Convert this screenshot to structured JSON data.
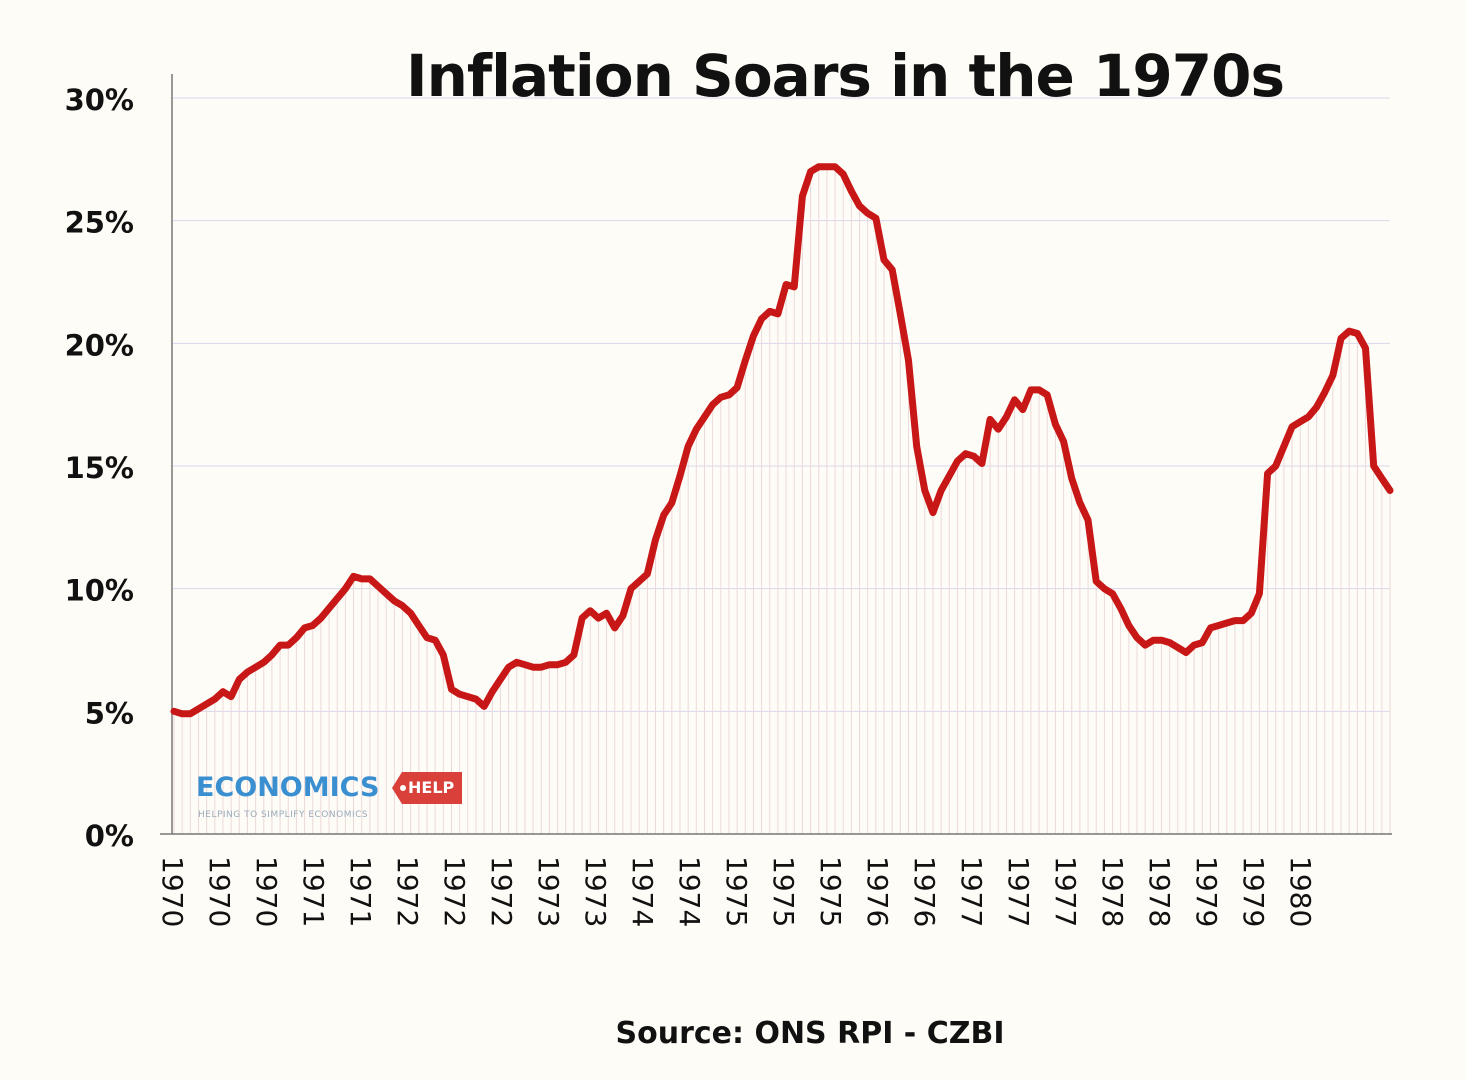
{
  "chart_data": {
    "type": "line",
    "title": "Inflation Soars in the 1970s",
    "source": "Source: ONS RPI - CZBI",
    "ylim": [
      0,
      30
    ],
    "y_ticks": [
      "0%",
      "5%",
      "10%",
      "15%",
      "20%",
      "25%",
      "30%"
    ],
    "y_tick_values": [
      0,
      5,
      10,
      15,
      20,
      25,
      30
    ],
    "x_tick_labels": [
      "1970",
      "1970",
      "1970",
      "1971",
      "1971",
      "1972",
      "1972",
      "1972",
      "1973",
      "1973",
      "1974",
      "1974",
      "1975",
      "1975",
      "1975",
      "1976",
      "1976",
      "1977",
      "1977",
      "1977",
      "1978",
      "1978",
      "1979",
      "1979",
      "1980"
    ],
    "grid": "horizontal",
    "legend": "none",
    "line_color": "#c81717",
    "series": [
      {
        "values": [
          5.0,
          4.9,
          4.9,
          5.1,
          5.3,
          5.5,
          5.8,
          5.6,
          6.3,
          6.6,
          6.8,
          7.0,
          7.3,
          7.7,
          7.7,
          8.0,
          8.4,
          8.5,
          8.8,
          9.2,
          9.6,
          10.0,
          10.5,
          10.4,
          10.4,
          10.1,
          9.8,
          9.5,
          9.3,
          9.0,
          8.5,
          8.0,
          7.9,
          7.3,
          5.9,
          5.7,
          5.6,
          5.5,
          5.2,
          5.8,
          6.3,
          6.8,
          7.0,
          6.9,
          6.8,
          6.8,
          6.9,
          6.9,
          7.0,
          7.3,
          8.8,
          9.1,
          8.8,
          9.0,
          8.4,
          8.9,
          10.0,
          10.3,
          10.6,
          12.0,
          13.0,
          13.5,
          14.6,
          15.8,
          16.5,
          17.0,
          17.5,
          17.8,
          17.9,
          18.2,
          19.3,
          20.3,
          21.0,
          21.3,
          21.2,
          22.4,
          22.3,
          26.0,
          27.0,
          27.2,
          27.2,
          27.2,
          26.9,
          26.2,
          25.6,
          25.3,
          25.1,
          23.4,
          23.0,
          21.2,
          19.3,
          15.8,
          14.0,
          13.1,
          14.0,
          14.6,
          15.2,
          15.5,
          15.4,
          15.1,
          16.9,
          16.5,
          17.0,
          17.7,
          17.3,
          18.1,
          18.1,
          17.9,
          16.7,
          16.0,
          14.5,
          13.5,
          12.8,
          10.3,
          10.0,
          9.8,
          9.2,
          8.5,
          8.0,
          7.7,
          7.9,
          7.9,
          7.8,
          7.6,
          7.4,
          7.7,
          7.8,
          8.4,
          8.5,
          8.6,
          8.7,
          8.7,
          9.0,
          9.8,
          14.7,
          15.0,
          15.8,
          16.6,
          16.8,
          17.0,
          17.4,
          18.0,
          18.7,
          20.2,
          20.5,
          20.4,
          19.8,
          15.0,
          14.5,
          14.0
        ]
      }
    ]
  },
  "logo": {
    "name": "ECONOMICS",
    "tag": "HELP",
    "tagline": "HELPING TO SIMPLIFY ECONOMICS"
  },
  "colors": {
    "background": "#fefcf6",
    "line": "#c81717",
    "grid": "#d8d8ee",
    "fill_lines": "#ecd9d9",
    "logo_blue": "#3a8fd1",
    "logo_red": "#d9403a"
  }
}
